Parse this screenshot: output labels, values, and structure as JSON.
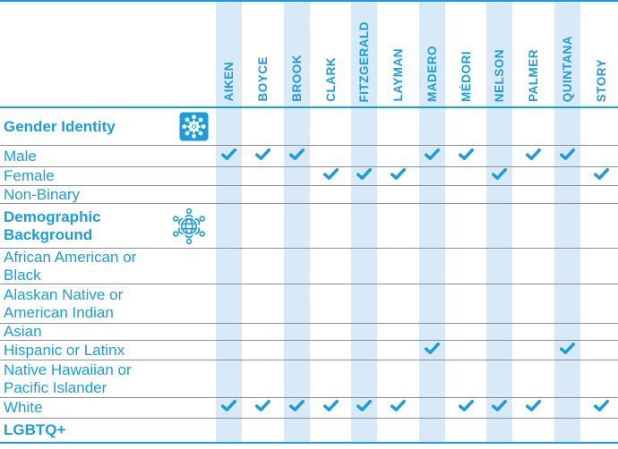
{
  "colors": {
    "accent": "#1b9dd9",
    "stripe": "#d8e9f7",
    "grid_line": "#8f8f8f",
    "background": "#ffffff"
  },
  "icons": {
    "gender_identity_section": "people-circle-tile-icon",
    "demographic_background_section": "globe-community-icon",
    "check_mark": "checkmark-icon"
  },
  "chart_data": {
    "type": "table",
    "columns": [
      "AIKEN",
      "BOYCE",
      "BROOK",
      "CLARK",
      "FITZGERALD",
      "LAYMAN",
      "MADERO",
      "MÉDORI",
      "NELSON",
      "PALMER",
      "QUINTANA",
      "STORY"
    ],
    "striped_columns": [
      "AIKEN",
      "BROOK",
      "FITZGERALD",
      "MADERO",
      "NELSON",
      "QUINTANA"
    ],
    "legend": "check mark = attribute applies to that person",
    "rows": [
      {
        "label": "Gender Identity",
        "kind": "section",
        "icon": "people-circle-tile-icon",
        "checked": []
      },
      {
        "label": "Male",
        "kind": "item",
        "checked": [
          "AIKEN",
          "BOYCE",
          "BROOK",
          "MADERO",
          "MÉDORI",
          "PALMER",
          "QUINTANA"
        ]
      },
      {
        "label": "Female",
        "kind": "item",
        "checked": [
          "CLARK",
          "FITZGERALD",
          "LAYMAN",
          "NELSON",
          "STORY"
        ]
      },
      {
        "label": "Non-Binary",
        "kind": "item",
        "checked": []
      },
      {
        "label": "Demographic Background",
        "kind": "section",
        "icon": "globe-community-icon",
        "checked": []
      },
      {
        "label": "African American or Black",
        "kind": "item",
        "checked": []
      },
      {
        "label": "Alaskan Native or American Indian",
        "kind": "item",
        "checked": []
      },
      {
        "label": "Asian",
        "kind": "item",
        "checked": []
      },
      {
        "label": "Hispanic or Latinx",
        "kind": "item",
        "checked": [
          "MADERO",
          "QUINTANA"
        ]
      },
      {
        "label": "Native Hawaiian or Pacific Islander",
        "kind": "item",
        "checked": []
      },
      {
        "label": "White",
        "kind": "item",
        "checked": [
          "AIKEN",
          "BOYCE",
          "BROOK",
          "CLARK",
          "FITZGERALD",
          "LAYMAN",
          "MÉDORI",
          "NELSON",
          "PALMER",
          "STORY"
        ]
      },
      {
        "label": "LGBTQ+",
        "kind": "section",
        "icon": null,
        "checked": []
      }
    ]
  }
}
